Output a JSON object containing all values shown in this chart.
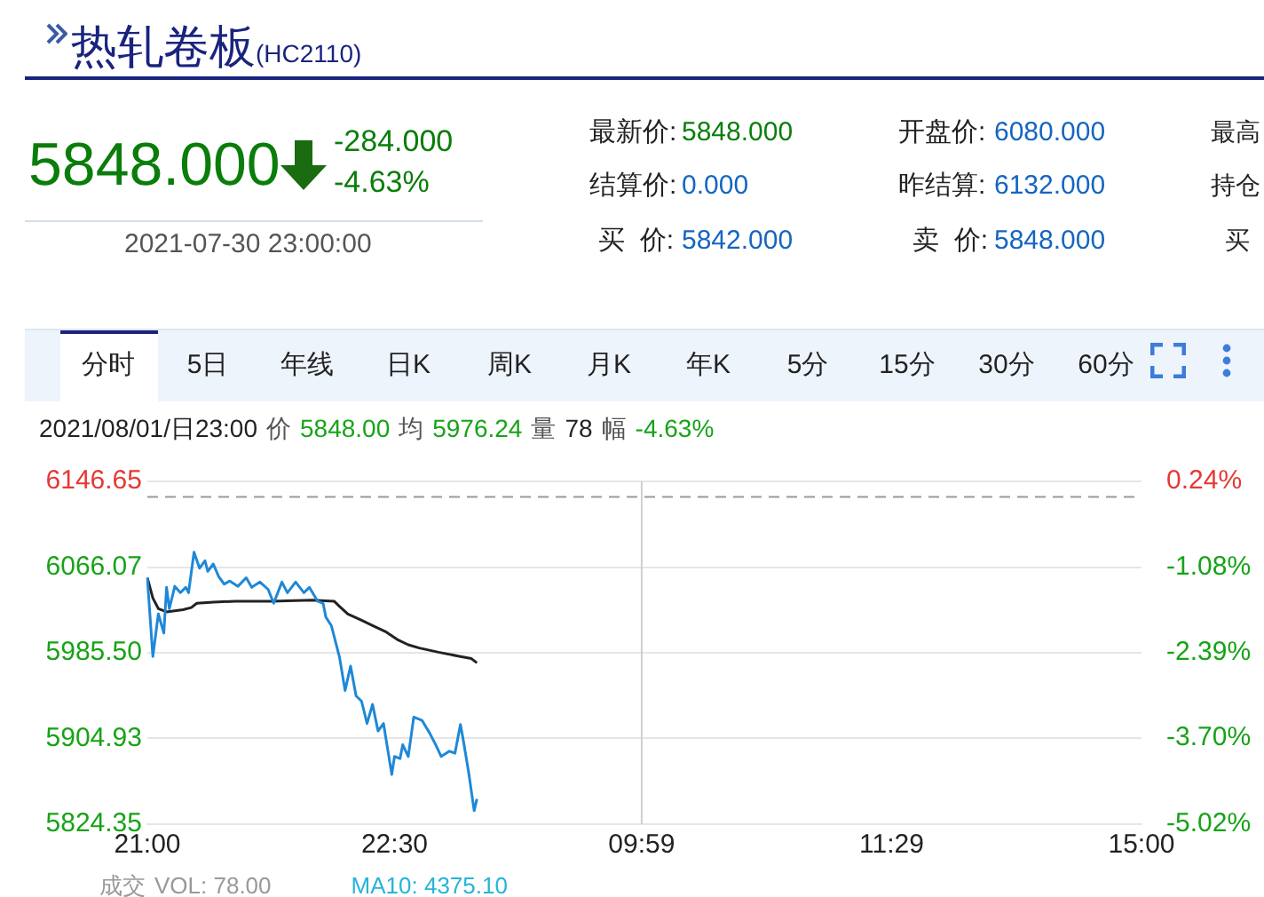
{
  "chart_data": {
    "type": "line",
    "title": "热轧卷板",
    "subtitle": "(HC2110)",
    "annotations": [
      "5848.000",
      "-284.000",
      "-4.63%",
      "2021-07-30 23:00:00",
      "最新价:",
      "5848.000",
      "开盘价:",
      "6080.000",
      "最高",
      "结算价:",
      "0.000",
      "昨结算:",
      "6132.000",
      "持仓",
      "买  价:",
      "5842.000",
      "卖  价:",
      "5848.000",
      "买",
      "分时",
      "5日",
      "年线",
      "日K",
      "周K",
      "月K",
      "年K",
      "5分",
      "15分",
      "30分",
      "60分",
      "2021/08/01/日23:00",
      "价",
      "5848.00",
      "均",
      "5976.24",
      "量",
      "78",
      "幅",
      "-4.63%",
      "成交",
      "VOL: 78.00",
      "MA10: 4375.10"
    ],
    "categories": [
      "21:00",
      null,
      null,
      null,
      null,
      null,
      null,
      null,
      null,
      null,
      null,
      null,
      null,
      null,
      null,
      null,
      null,
      null,
      null,
      null,
      null,
      null,
      null,
      null,
      null,
      null,
      null,
      null,
      null,
      null,
      null,
      null,
      null,
      null,
      null,
      null,
      null,
      null,
      null,
      null,
      null,
      null,
      null,
      null,
      null,
      null,
      null,
      null,
      null,
      null,
      null,
      null,
      null,
      null,
      null,
      null,
      null,
      null,
      null,
      null,
      null,
      null,
      null,
      null,
      null,
      null,
      null,
      null,
      null,
      null,
      null,
      null,
      null,
      null,
      null,
      null,
      null,
      null,
      null,
      null,
      null,
      null,
      null,
      null,
      null,
      null,
      null,
      null,
      null,
      null,
      "22:30",
      null,
      null,
      null,
      null,
      null,
      null,
      null,
      null,
      null,
      null,
      null,
      null,
      null,
      null,
      null,
      null,
      null,
      null,
      null,
      null,
      null,
      null,
      null,
      null,
      null,
      null,
      null,
      null,
      null,
      null,
      null,
      null,
      null,
      null,
      null,
      null,
      null,
      null,
      null,
      null,
      null,
      null,
      null,
      null,
      null,
      null,
      null,
      null,
      null,
      null,
      null,
      null,
      null,
      null,
      null,
      null,
      null,
      null,
      null,
      null,
      null,
      null,
      null,
      null,
      null,
      null,
      null,
      null,
      null,
      null,
      null,
      null,
      null,
      null,
      null,
      null,
      null,
      null,
      null,
      null,
      null,
      null,
      null,
      null,
      null,
      null,
      null,
      null,
      null,
      "09:59",
      null,
      null,
      null,
      null,
      null,
      null,
      null,
      null,
      null,
      null,
      null,
      null,
      null,
      null,
      null,
      null,
      null,
      null,
      null,
      null,
      null,
      null,
      null,
      null,
      null,
      null,
      null,
      null,
      null,
      null,
      null,
      null,
      null,
      null,
      null,
      null,
      null,
      null,
      null,
      null,
      null,
      null,
      null,
      null,
      null,
      null,
      null,
      null,
      null,
      null,
      null,
      null,
      null,
      null,
      null,
      null,
      null,
      null,
      null,
      null,
      null,
      null,
      null,
      null,
      null,
      null,
      null,
      null,
      null,
      null,
      null,
      null,
      null,
      null,
      null,
      null,
      null,
      null,
      null,
      null,
      null,
      null,
      null,
      null,
      null,
      null,
      null,
      null,
      null,
      null,
      "11:29",
      null,
      null,
      null,
      null,
      null,
      null,
      null,
      null,
      null,
      null,
      null,
      null,
      null,
      null,
      null,
      null,
      null,
      null,
      null,
      null,
      null,
      null,
      null,
      null,
      null,
      null,
      null,
      null,
      null,
      null,
      null,
      null,
      null,
      null,
      null,
      null,
      null,
      null,
      null,
      null,
      null,
      null,
      null,
      null,
      null,
      null,
      null,
      null,
      null,
      null,
      null,
      null,
      null,
      null,
      null,
      null,
      null,
      null,
      null,
      null,
      null,
      null,
      null,
      null,
      null,
      null,
      null,
      null,
      null,
      null,
      null,
      null,
      null,
      null,
      null,
      null,
      null,
      null,
      null,
      null,
      null,
      null,
      null,
      null,
      null,
      null,
      null,
      null,
      null,
      null,
      "15:00"
    ],
    "ylim": [
      5824.35,
      6146.65
    ],
    "yticks": [
      {
        "value": 5824.35,
        "label": "5824.35"
      },
      {
        "value": 5904.93,
        "label": "5904.93"
      },
      {
        "value": 5985.5,
        "label": "5985.50"
      },
      {
        "value": 6066.07,
        "label": "6066.07"
      },
      {
        "value": 6146.65,
        "label": "6146.65"
      }
    ],
    "y2lim": [
      -5.02,
      0.24
    ],
    "y2ticks": [
      {
        "value": -5.02,
        "label": "-5.02%"
      },
      {
        "value": -3.7,
        "label": "-3.70%"
      },
      {
        "value": -2.39,
        "label": "-2.39%"
      },
      {
        "value": -1.08,
        "label": "-1.08%"
      },
      {
        "value": 0.24,
        "label": "0.24%"
      }
    ],
    "grid": "y",
    "legend": false,
    "marker": "none",
    "ref_lines": [
      {
        "axis": "y",
        "value": 6132,
        "color": "#999999",
        "line_style": "dashed"
      },
      {
        "axis": "x",
        "value": "09:59",
        "color": "#cfcfcf",
        "line_style": "solid"
      }
    ],
    "series": [
      {
        "color": "#1e88d8",
        "values": [
          6056,
          null,
          5982,
          null,
          6022,
          null,
          6004,
          6047,
          6027,
          null,
          6048,
          null,
          6042,
          null,
          6047,
          6042,
          null,
          6080,
          null,
          6065,
          null,
          6072,
          6062,
          null,
          6069,
          null,
          6057,
          null,
          6050,
          null,
          6053,
          null,
          null,
          6048,
          null,
          null,
          6056,
          null,
          6047,
          null,
          null,
          6052,
          null,
          null,
          6045,
          null,
          6032,
          null,
          null,
          6052,
          null,
          6042,
          null,
          null,
          6052,
          null,
          null,
          6042,
          null,
          6047,
          null,
          null,
          6034,
          null,
          6032,
          6019,
          null,
          6011,
          null,
          null,
          5981,
          null,
          5950,
          null,
          5973,
          null,
          5945,
          null,
          5940,
          null,
          5919,
          null,
          5937,
          null,
          5912,
          null,
          5919,
          null,
          null,
          5871,
          5888,
          null,
          5886,
          5899,
          null,
          5888,
          null,
          5925,
          null,
          null,
          5922,
          null,
          null,
          5909,
          null,
          5899,
          null,
          5888,
          null,
          null,
          5893,
          null,
          5891,
          null,
          5918,
          5904,
          null,
          5873,
          null,
          5837,
          5848,
          null,
          null,
          null,
          null,
          null,
          null,
          null,
          null,
          null,
          null,
          null,
          null,
          null,
          null,
          null,
          null,
          null,
          null,
          null,
          null,
          null,
          null,
          null,
          null,
          null,
          null,
          null,
          null,
          null,
          null,
          null,
          null,
          null,
          null,
          null,
          null,
          null,
          null,
          null,
          null,
          null,
          null,
          null,
          null,
          null,
          null,
          null,
          null,
          null,
          null,
          null,
          null,
          null,
          null,
          null,
          null,
          null,
          null,
          null,
          null,
          null,
          null,
          null,
          null,
          null,
          null,
          null,
          null,
          null,
          null,
          null,
          null,
          null,
          null,
          null,
          null,
          null,
          null,
          null,
          null,
          null,
          null,
          null,
          null,
          null,
          null,
          null,
          null,
          null,
          null,
          null,
          null,
          null,
          null,
          null,
          null,
          null,
          null,
          null,
          null,
          null,
          null,
          null,
          null,
          null,
          null,
          null,
          null,
          null,
          null,
          null,
          null,
          null,
          null,
          null,
          null,
          null,
          null,
          null,
          null,
          null,
          null,
          null,
          null,
          null,
          null,
          null,
          null,
          null,
          null,
          null,
          null,
          null,
          null,
          null,
          null,
          null,
          null,
          null,
          null,
          null,
          null,
          null,
          null,
          null,
          null,
          null,
          null,
          null,
          null,
          null,
          null,
          null,
          null,
          null,
          null,
          null,
          null,
          null,
          null,
          null,
          null,
          null,
          null,
          null,
          null,
          null,
          null,
          null,
          null,
          null,
          null,
          null,
          null,
          null,
          null,
          null,
          null,
          null,
          null,
          null,
          null,
          null,
          null,
          null,
          null,
          null,
          null,
          null,
          null,
          null,
          null,
          null,
          null,
          null,
          null,
          null,
          null,
          null,
          null,
          null,
          null,
          null,
          null,
          null,
          null,
          null,
          null,
          null,
          null,
          null,
          null,
          null,
          null,
          null,
          null,
          null,
          null,
          null,
          null,
          null,
          null,
          null,
          null,
          null,
          null,
          null,
          null,
          null,
          null,
          null,
          null,
          null,
          null,
          null,
          null,
          null,
          null,
          null,
          null,
          null,
          null
        ]
      },
      {
        "color": "#222222",
        "values": [
          6056,
          null,
          6037,
          null,
          6027,
          null,
          null,
          6024,
          null,
          null,
          null,
          null,
          null,
          6026,
          null,
          null,
          6028,
          null,
          6032,
          null,
          null,
          null,
          null,
          null,
          6033,
          null,
          null,
          null,
          null,
          null,
          null,
          null,
          6034,
          null,
          null,
          null,
          null,
          null,
          null,
          null,
          null,
          null,
          null,
          null,
          null,
          6034,
          null,
          null,
          null,
          null,
          null,
          null,
          null,
          null,
          null,
          null,
          null,
          null,
          null,
          null,
          6035,
          null,
          null,
          null,
          null,
          null,
          null,
          null,
          6034,
          null,
          6029,
          null,
          null,
          6022,
          null,
          null,
          null,
          null,
          6016,
          null,
          null,
          null,
          6011,
          null,
          null,
          null,
          null,
          6005,
          null,
          null,
          null,
          5998,
          null,
          null,
          null,
          5993,
          null,
          null,
          null,
          5990,
          null,
          null,
          null,
          null,
          null,
          null,
          5986,
          null,
          null,
          null,
          null,
          null,
          null,
          null,
          5982,
          null,
          null,
          null,
          5980,
          null,
          5976,
          null,
          null,
          null,
          null,
          null,
          null,
          null,
          null,
          null,
          null,
          null,
          null,
          null,
          null,
          null,
          null,
          null,
          null,
          null,
          null,
          null,
          null,
          null,
          null,
          null,
          null,
          null,
          null,
          null,
          null,
          null,
          null,
          null,
          null,
          null,
          null,
          null,
          null,
          null,
          null,
          null,
          null,
          null,
          null,
          null,
          null,
          null,
          null,
          null,
          null,
          null,
          null,
          null,
          null,
          null,
          null,
          null,
          null,
          null,
          null,
          null,
          null,
          null,
          null,
          null,
          null,
          null,
          null,
          null,
          null,
          null,
          null,
          null,
          null,
          null,
          null,
          null,
          null,
          null,
          null,
          null,
          null,
          null,
          null,
          null,
          null,
          null,
          null,
          null,
          null,
          null,
          null,
          null,
          null,
          null,
          null,
          null,
          null,
          null,
          null,
          null,
          null,
          null,
          null,
          null,
          null,
          null,
          null,
          null,
          null,
          null,
          null,
          null,
          null,
          null,
          null,
          null,
          null,
          null,
          null,
          null,
          null,
          null,
          null,
          null,
          null,
          null,
          null,
          null,
          null,
          null,
          null,
          null,
          null,
          null,
          null,
          null,
          null,
          null,
          null,
          null,
          null,
          null,
          null,
          null,
          null,
          null,
          null,
          null,
          null,
          null,
          null,
          null,
          null,
          null,
          null,
          null,
          null,
          null,
          null,
          null,
          null,
          null,
          null,
          null,
          null,
          null,
          null,
          null,
          null,
          null,
          null,
          null,
          null,
          null,
          null,
          null,
          null,
          null,
          null,
          null,
          null,
          null,
          null,
          null,
          null,
          null,
          null,
          null,
          null,
          null,
          null,
          null,
          null,
          null,
          null,
          null,
          null,
          null,
          null,
          null,
          null,
          null,
          null,
          null,
          null,
          null,
          null,
          null,
          null,
          null,
          null,
          null,
          null,
          null,
          null,
          null,
          null,
          null,
          null,
          null,
          null,
          null,
          null,
          null,
          null,
          null,
          null,
          null,
          null,
          null,
          null,
          null,
          null,
          null,
          null,
          null,
          null,
          null,
          null,
          null,
          null
        ]
      }
    ]
  }
}
